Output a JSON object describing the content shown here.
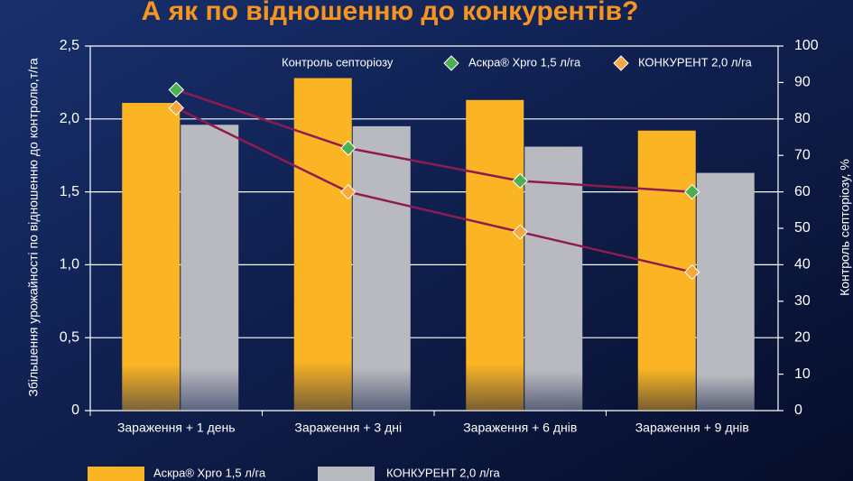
{
  "chart_data": {
    "type": "bar",
    "title": "А як по відношенню до конкурентів?",
    "y_label": "Збільшення урожайності по відношенню до контролю,т/га",
    "y2_label": "Контроль септоріозу, %",
    "line_legend_title": "Контроль септоріозу",
    "categories": [
      "Зараження + 1 день",
      "Зараження + 3 дні",
      "Зараження + 6 днів",
      "Зараження + 9 днів"
    ],
    "series": [
      {
        "name": "Аскра® Xpro 1,5 л/га",
        "type": "bar",
        "color": "#fbb524",
        "values": [
          2.11,
          2.28,
          2.13,
          1.92
        ]
      },
      {
        "name": "КОНКУРЕНТ 2,0 л/га",
        "type": "bar",
        "color": "#b9bac0",
        "values": [
          1.96,
          1.95,
          1.81,
          1.63
        ]
      },
      {
        "name": "Аскра® Xpro 1,5 л/га",
        "type": "line",
        "axis": "y2",
        "color": "#4caf50",
        "values": [
          88,
          72,
          63,
          60
        ]
      },
      {
        "name": "КОНКУРЕНТ 2,0 л/га",
        "type": "line",
        "axis": "y2",
        "color": "#f7a940",
        "values": [
          83,
          60,
          49,
          38
        ]
      }
    ],
    "line_color": "#8e1b52",
    "ylim": [
      0,
      2.5
    ],
    "yticks": [
      0,
      {
        "value": 0.5,
        "label": "0,5"
      },
      {
        "value": 1.0,
        "label": "1,0"
      },
      {
        "value": 1.5,
        "label": "1,5"
      },
      {
        "value": 2.0,
        "label": "2,0"
      },
      {
        "value": 2.5,
        "label": "2,5"
      }
    ],
    "y2lim": [
      0,
      100
    ],
    "y2ticks": [
      0,
      10,
      20,
      30,
      40,
      50,
      60,
      70,
      80,
      90,
      100
    ],
    "grid": true
  }
}
